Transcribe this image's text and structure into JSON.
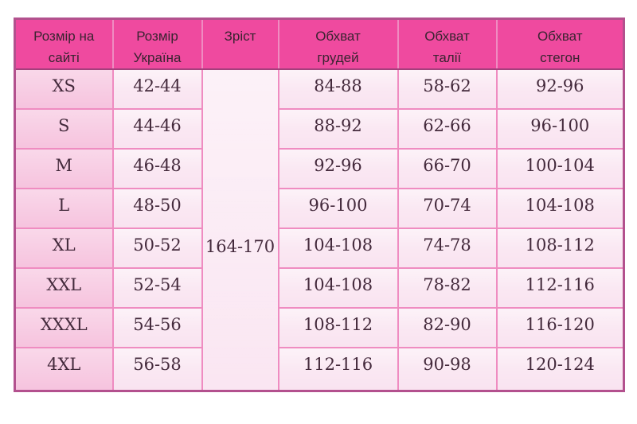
{
  "theme": {
    "page_bg": "#ffffff",
    "header_bg": "#ef4a9f",
    "header_text": "#3a2431",
    "cell_text": "#442a3c",
    "col1_bg": "#f6c3de",
    "cell_bg": "#f9e3f0",
    "merged_bg": "#fae6f2",
    "inner_border": "#ef8cc1",
    "outer_border": "#b3518e",
    "header_divider": "#a43f7c"
  },
  "table": {
    "headers": [
      "Розмір на\nсайті",
      "Розмір\nУкраїна",
      "Зріст",
      "Обхват\nгрудей",
      "Обхват\nталії",
      "Обхват\nстегон"
    ],
    "height_merged": "164-170",
    "rows": [
      {
        "site_size": "XS",
        "ua_size": "42-44",
        "chest": "84-88",
        "waist": "58-62",
        "hips": "92-96"
      },
      {
        "site_size": "S",
        "ua_size": "44-46",
        "chest": "88-92",
        "waist": "62-66",
        "hips": "96-100"
      },
      {
        "site_size": "M",
        "ua_size": "46-48",
        "chest": "92-96",
        "waist": "66-70",
        "hips": "100-104"
      },
      {
        "site_size": "L",
        "ua_size": "48-50",
        "chest": "96-100",
        "waist": "70-74",
        "hips": "104-108"
      },
      {
        "site_size": "XL",
        "ua_size": "50-52",
        "chest": "104-108",
        "waist": "74-78",
        "hips": "108-112"
      },
      {
        "site_size": "XXL",
        "ua_size": "52-54",
        "chest": "104-108",
        "waist": "78-82",
        "hips": "112-116"
      },
      {
        "site_size": "XXXL",
        "ua_size": "54-56",
        "chest": "108-112",
        "waist": "82-90",
        "hips": "116-120"
      },
      {
        "site_size": "4XL",
        "ua_size": "56-58",
        "chest": "112-116",
        "waist": "90-98",
        "hips": "120-124"
      }
    ]
  }
}
